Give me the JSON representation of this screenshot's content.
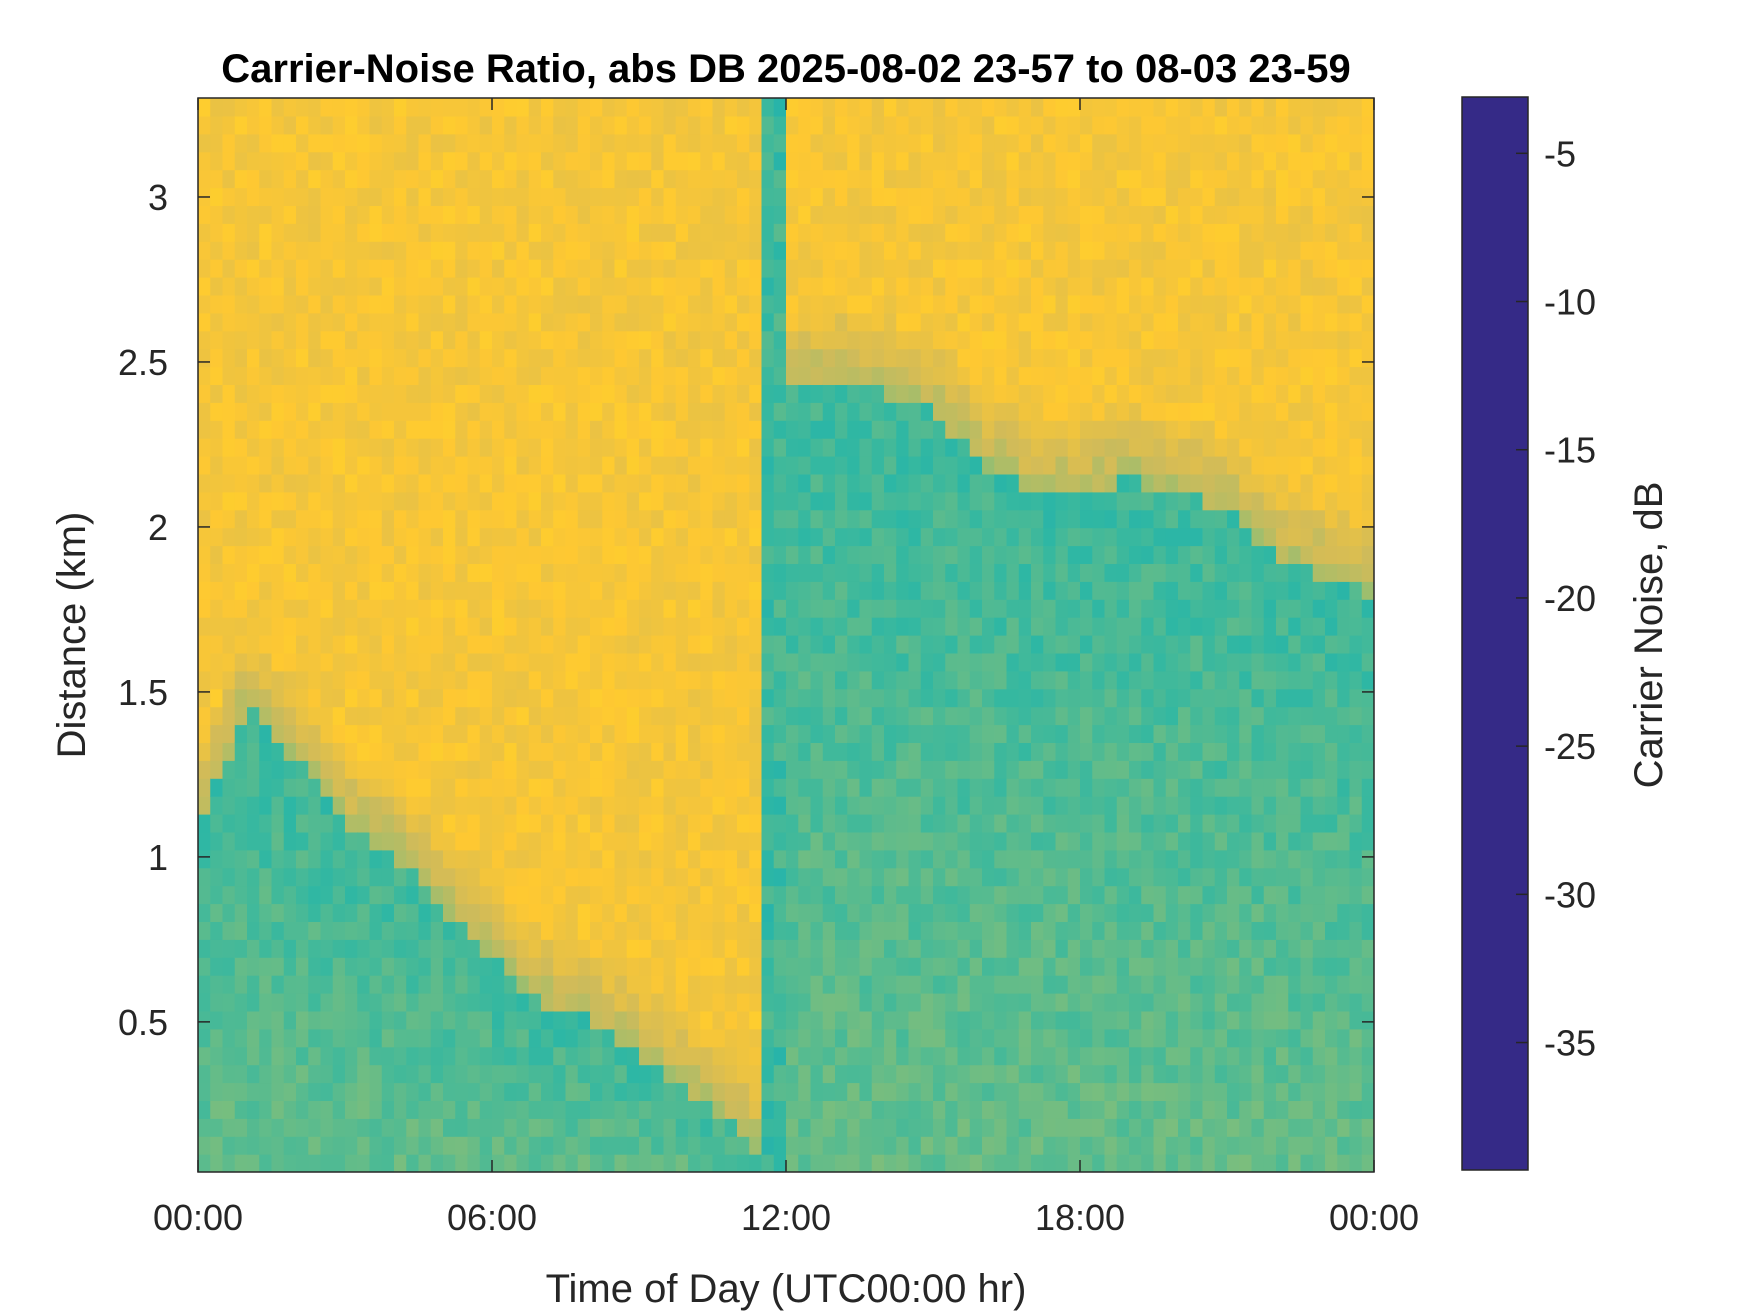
{
  "chart_data": {
    "type": "heatmap",
    "title": "Carrier-Noise Ratio, abs DB 2025-08-02 23-57 to 08-03 23-59",
    "xlabel": "Time of Day (UTC00:00 hr)",
    "ylabel": "Distance (km)",
    "colorbar_label": "Carrier Noise, dB",
    "x_ticks": [
      {
        "value": 0,
        "label": "00:00"
      },
      {
        "value": 6,
        "label": "06:00"
      },
      {
        "value": 12,
        "label": "12:00"
      },
      {
        "value": 18,
        "label": "18:00"
      },
      {
        "value": 24,
        "label": "00:00"
      }
    ],
    "y_ticks": [
      {
        "value": 0.5,
        "label": "0.5"
      },
      {
        "value": 1.0,
        "label": "1"
      },
      {
        "value": 1.5,
        "label": "1.5"
      },
      {
        "value": 2.0,
        "label": "2"
      },
      {
        "value": 2.5,
        "label": "2.5"
      },
      {
        "value": 3.0,
        "label": "3"
      }
    ],
    "colorbar_ticks": [
      {
        "value": -5,
        "label": "-5"
      },
      {
        "value": -10,
        "label": "-10"
      },
      {
        "value": -15,
        "label": "-15"
      },
      {
        "value": -20,
        "label": "-20"
      },
      {
        "value": -25,
        "label": "-25"
      },
      {
        "value": -30,
        "label": "-30"
      },
      {
        "value": -35,
        "label": "-35"
      }
    ],
    "xlim": [
      0,
      24
    ],
    "ylim": [
      0.045,
      3.3
    ],
    "clim": [
      -39.3,
      -3.1
    ],
    "colormap": "parula",
    "colormap_colors": [
      "#352a87",
      "#0f5cdd",
      "#1481d6",
      "#06a4ca",
      "#2eb7a4",
      "#87bf77",
      "#d1bb59",
      "#fec832",
      "#f9fb0e"
    ],
    "background_value": -34,
    "boundary_km": [
      [
        0.0,
        1.1
      ],
      [
        1.0,
        1.45
      ],
      [
        2.0,
        1.3
      ],
      [
        3.0,
        1.1
      ],
      [
        4.0,
        1.0
      ],
      [
        5.0,
        0.85
      ],
      [
        6.0,
        0.7
      ],
      [
        7.0,
        0.55
      ],
      [
        8.0,
        0.5
      ],
      [
        9.0,
        0.4
      ],
      [
        10.0,
        0.28
      ],
      [
        11.0,
        0.18
      ],
      [
        11.5,
        0.1
      ],
      [
        12.0,
        2.4
      ],
      [
        13.0,
        2.45
      ],
      [
        14.0,
        2.4
      ],
      [
        15.0,
        2.35
      ],
      [
        16.0,
        2.2
      ],
      [
        17.0,
        2.1
      ],
      [
        18.0,
        2.1
      ],
      [
        19.0,
        2.15
      ],
      [
        20.0,
        2.1
      ],
      [
        21.0,
        2.05
      ],
      [
        22.0,
        1.9
      ],
      [
        23.0,
        1.85
      ],
      [
        24.0,
        1.8
      ]
    ],
    "aerosol_value": -22,
    "cloud_band": {
      "x_start": 11.5,
      "x_end": 11.9,
      "value": -22
    }
  }
}
